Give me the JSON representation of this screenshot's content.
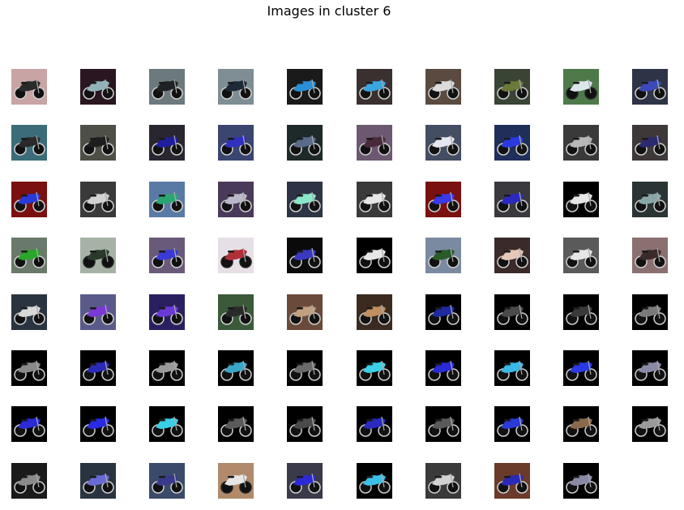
{
  "figure": {
    "title": "Images in cluster 6"
  },
  "chart_data": {
    "type": "image_grid",
    "title": "Images in cluster 6",
    "rows": 8,
    "cols": 10,
    "images": [
      {
        "bg": "#c8a4a4",
        "fg": "#2a2a2a",
        "dark": true
      },
      {
        "bg": "#2a1620",
        "fg": "#8fb3b8",
        "dark": true
      },
      {
        "bg": "#6c7a7e",
        "fg": "#1e2224",
        "dark": true
      },
      {
        "bg": "#7f8d94",
        "fg": "#1d2838",
        "dark": true
      },
      {
        "bg": "#1a1a1a",
        "fg": "#2a8fd6",
        "dark": true
      },
      {
        "bg": "#3a3030",
        "fg": "#3aa6e0",
        "dark": true
      },
      {
        "bg": "#5a4a40",
        "fg": "#dcdcdc",
        "dark": true
      },
      {
        "bg": "#3a4434",
        "fg": "#6b7a3a",
        "dark": true
      },
      {
        "bg": "#4e7a4a",
        "fg": "#dde6ea",
        "dark": false
      },
      {
        "bg": "#2e3446",
        "fg": "#3b4ab8",
        "dark": true
      },
      {
        "bg": "#3c6c7a",
        "fg": "#2a2a2a",
        "dark": true
      },
      {
        "bg": "#4e5048",
        "fg": "#1e1e1e",
        "dark": true
      },
      {
        "bg": "#2a2630",
        "fg": "#1e1e9e",
        "dark": true
      },
      {
        "bg": "#3a4670",
        "fg": "#3030c0",
        "dark": true
      },
      {
        "bg": "#1e2a2a",
        "fg": "#5a6a8a",
        "dark": true
      },
      {
        "bg": "#6c5870",
        "fg": "#4a2a3a",
        "dark": true
      },
      {
        "bg": "#444e62",
        "fg": "#e6e6f0",
        "dark": true
      },
      {
        "bg": "#202e5a",
        "fg": "#2a3ae0",
        "dark": true
      },
      {
        "bg": "#3a3a3a",
        "fg": "#b8b8b8",
        "dark": true
      },
      {
        "bg": "#3e3838",
        "fg": "#2a2a6e",
        "dark": true
      },
      {
        "bg": "#7a1010",
        "fg": "#2a3ad6",
        "dark": true
      },
      {
        "bg": "#3a3a3a",
        "fg": "#d2d2d2",
        "dark": true
      },
      {
        "bg": "#5a7aa6",
        "fg": "#2aa672",
        "dark": true
      },
      {
        "bg": "#4a3a5a",
        "fg": "#b8b8c8",
        "dark": true
      },
      {
        "bg": "#2e3446",
        "fg": "#8ae6c8",
        "dark": true
      },
      {
        "bg": "#3a3a3a",
        "fg": "#e6e6e6",
        "dark": true
      },
      {
        "bg": "#7a1010",
        "fg": "#3a3ae6",
        "dark": true
      },
      {
        "bg": "#3a3a3e",
        "fg": "#2a2ac0",
        "dark": true
      },
      {
        "bg": "#000000",
        "fg": "#e6e6e6",
        "dark": true
      },
      {
        "bg": "#2a3434",
        "fg": "#8aa6a6",
        "dark": true
      },
      {
        "bg": "#6a7a6a",
        "fg": "#2aa62a",
        "dark": true
      },
      {
        "bg": "#a6b2a6",
        "fg": "#2a3a2a",
        "dark": false
      },
      {
        "bg": "#6a5a7a",
        "fg": "#3a3ad6",
        "dark": true
      },
      {
        "bg": "#e6e0e6",
        "fg": "#b0303a",
        "dark": false
      },
      {
        "bg": "#0a0a0a",
        "fg": "#3a3ac0",
        "dark": true
      },
      {
        "bg": "#000000",
        "fg": "#e6e6e6",
        "dark": true
      },
      {
        "bg": "#7a8aa0",
        "fg": "#2a5a2a",
        "dark": true
      },
      {
        "bg": "#3a2a2a",
        "fg": "#e6c8b8",
        "dark": true
      },
      {
        "bg": "#5a5a5a",
        "fg": "#e6e6e6",
        "dark": true
      },
      {
        "bg": "#8a7070",
        "fg": "#3a2a2a",
        "dark": true
      },
      {
        "bg": "#2a3440",
        "fg": "#d8d8d8",
        "dark": true
      },
      {
        "bg": "#5a5a8a",
        "fg": "#7a3ad6",
        "dark": true
      },
      {
        "bg": "#2a2060",
        "fg": "#6a3ad6",
        "dark": true
      },
      {
        "bg": "#3a5a3a",
        "fg": "#2a2a2a",
        "dark": true
      },
      {
        "bg": "#6a4a3a",
        "fg": "#c0a080",
        "dark": true
      },
      {
        "bg": "#3a2a20",
        "fg": "#c09060",
        "dark": true
      },
      {
        "bg": "#000000",
        "fg": "#1e2a9e",
        "dark": true
      },
      {
        "bg": "#000000",
        "fg": "#4a4a4a",
        "dark": true
      },
      {
        "bg": "#000000",
        "fg": "#3a3a3a",
        "dark": true
      },
      {
        "bg": "#000000",
        "fg": "#7a7a7a",
        "dark": true
      },
      {
        "bg": "#000000",
        "fg": "#8a8a8a",
        "dark": true
      },
      {
        "bg": "#000000",
        "fg": "#2a2ab8",
        "dark": true
      },
      {
        "bg": "#000000",
        "fg": "#9a9a9a",
        "dark": true
      },
      {
        "bg": "#000000",
        "fg": "#3aa6c8",
        "dark": true
      },
      {
        "bg": "#000000",
        "fg": "#6a6a6a",
        "dark": true
      },
      {
        "bg": "#000000",
        "fg": "#3ad0e6",
        "dark": true
      },
      {
        "bg": "#000000",
        "fg": "#2a2ad6",
        "dark": true
      },
      {
        "bg": "#000000",
        "fg": "#3ab8e6",
        "dark": true
      },
      {
        "bg": "#000000",
        "fg": "#2a3ae6",
        "dark": true
      },
      {
        "bg": "#000000",
        "fg": "#8a8aa6",
        "dark": true
      },
      {
        "bg": "#000000",
        "fg": "#2a2ad6",
        "dark": true
      },
      {
        "bg": "#000000",
        "fg": "#2a2ae6",
        "dark": true
      },
      {
        "bg": "#000000",
        "fg": "#3ad0e6",
        "dark": true
      },
      {
        "bg": "#000000",
        "fg": "#5a5a5a",
        "dark": true
      },
      {
        "bg": "#000000",
        "fg": "#4a4a4a",
        "dark": true
      },
      {
        "bg": "#000000",
        "fg": "#2a2ac0",
        "dark": true
      },
      {
        "bg": "#000000",
        "fg": "#5a5a5a",
        "dark": true
      },
      {
        "bg": "#000000",
        "fg": "#2a3ad6",
        "dark": true
      },
      {
        "bg": "#000000",
        "fg": "#8a6a4a",
        "dark": true
      },
      {
        "bg": "#000000",
        "fg": "#9a9a9a",
        "dark": true
      },
      {
        "bg": "#1a1a1a",
        "fg": "#8a8a8a",
        "dark": true
      },
      {
        "bg": "#2a3440",
        "fg": "#6a6ad6",
        "dark": true
      },
      {
        "bg": "#3a4a6a",
        "fg": "#3a3a8a",
        "dark": true
      },
      {
        "bg": "#b08a6a",
        "fg": "#e6e6e6",
        "dark": false
      },
      {
        "bg": "#3a3a4a",
        "fg": "#2a2ad6",
        "dark": true
      },
      {
        "bg": "#000000",
        "fg": "#3ac0e6",
        "dark": true
      },
      {
        "bg": "#3a3a3a",
        "fg": "#d2d2d2",
        "dark": true
      },
      {
        "bg": "#6a3a2a",
        "fg": "#2a2ab8",
        "dark": true
      },
      {
        "bg": "#000000",
        "fg": "#8a8aa6",
        "dark": true
      }
    ]
  }
}
